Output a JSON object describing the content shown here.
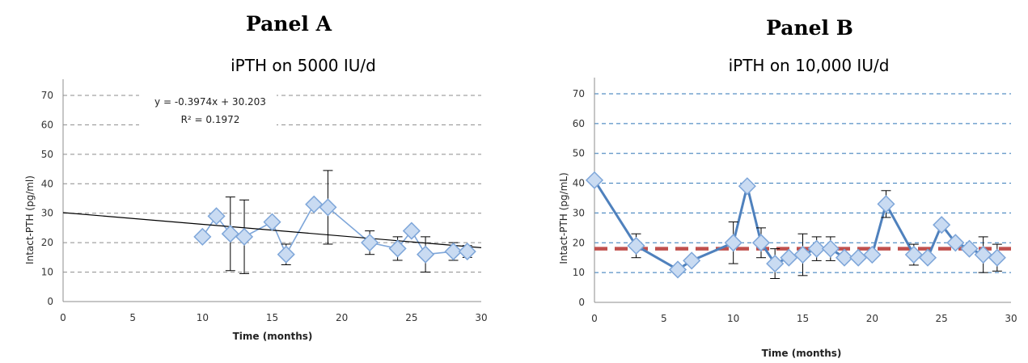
{
  "chart_data": [
    {
      "panel_label": "Panel A",
      "type": "scatter",
      "title": "iPTH on 5000 IU/d",
      "xlabel": "Time (months)",
      "ylabel": "Intact-PTH  (pg/ml)",
      "xlim": [
        0,
        30
      ],
      "ylim": [
        0,
        70
      ],
      "x_ticks": [
        0,
        5,
        10,
        15,
        20,
        25,
        30
      ],
      "y_ticks": [
        0,
        10,
        20,
        30,
        40,
        50,
        60,
        70
      ],
      "grid": "horizontal dashed",
      "gridColor": "#8c8c8c",
      "lineColor": "#7ea6d9",
      "markerFill": "#c9dbf2",
      "markerStroke": "#7ea6d9",
      "trendline": {
        "intercept": 30.203,
        "slope": -0.3974,
        "equation": "y = -0.3974x + 30.203",
        "r2": "R² = 0.1972",
        "color": "#000000"
      },
      "series": [
        {
          "x": [
            10,
            11,
            12,
            13,
            15,
            16,
            18,
            19,
            22,
            24,
            25,
            26,
            28,
            29
          ],
          "y": [
            22,
            29,
            23,
            22,
            27,
            16,
            33,
            32,
            20,
            18,
            24,
            16,
            17,
            17
          ],
          "err": [
            null,
            null,
            12.5,
            12.5,
            null,
            3.5,
            null,
            12.5,
            4,
            4,
            null,
            6,
            3,
            2
          ]
        }
      ]
    },
    {
      "panel_label": "Panel B",
      "type": "line",
      "title": "iPTH on 10,000 IU/d",
      "xlabel": "Time (months)",
      "ylabel": "Intact-PTH  (pg/mL)",
      "xlim": [
        0,
        30
      ],
      "ylim": [
        0,
        70
      ],
      "x_ticks": [
        0,
        5,
        10,
        15,
        20,
        25,
        30
      ],
      "y_ticks": [
        0,
        10,
        20,
        30,
        40,
        50,
        60,
        70
      ],
      "grid": "horizontal dashed",
      "gridColor": "#2e75b6",
      "lineColor": "#4f81bd",
      "markerFill": "#c9dbf2",
      "markerStroke": "#7ea6d9",
      "reference_line": {
        "y": 18,
        "color": "#c0504d"
      },
      "series": [
        {
          "x": [
            0,
            3,
            6,
            7,
            10,
            11,
            12,
            13,
            14,
            15,
            16,
            17,
            18,
            19,
            20,
            21,
            23,
            24,
            25,
            26,
            27,
            28,
            29
          ],
          "y": [
            41,
            19,
            11,
            14,
            20,
            39,
            20,
            13,
            15,
            16,
            18,
            18,
            15,
            15,
            16,
            33,
            16,
            15,
            26,
            20,
            18,
            16,
            15
          ],
          "err": [
            null,
            4,
            null,
            null,
            7,
            null,
            5,
            5,
            null,
            7,
            4,
            4,
            null,
            null,
            null,
            4.5,
            3.5,
            null,
            null,
            null,
            null,
            6,
            4.5
          ]
        }
      ]
    }
  ]
}
